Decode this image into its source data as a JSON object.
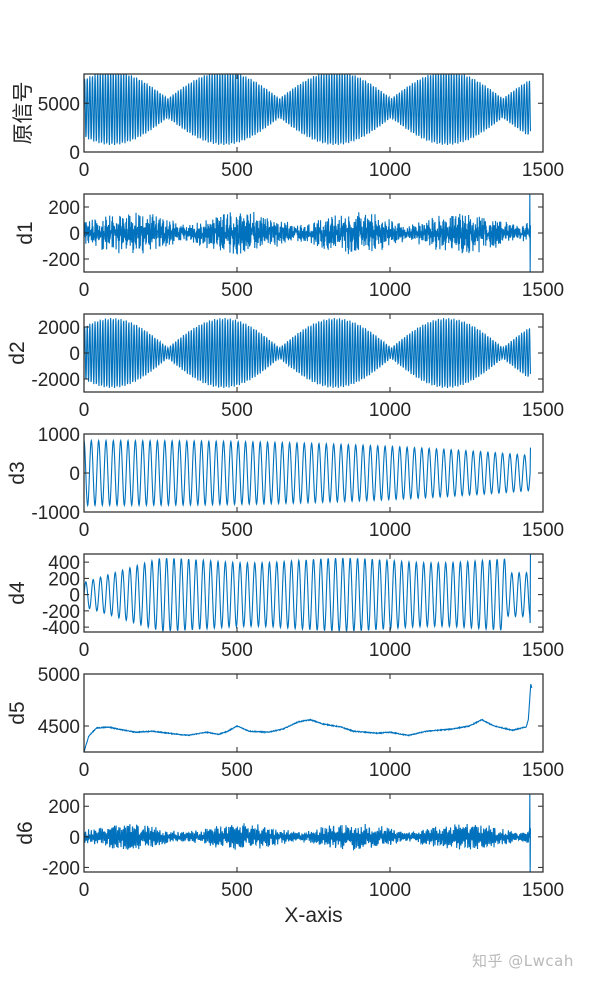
{
  "figure": {
    "xlabel": "X-axis",
    "watermark": "知乎 @Lwcah",
    "line_color": "#0072BD",
    "axes_color": "#262626"
  },
  "chart_data": [
    {
      "type": "line",
      "title": "",
      "xlabel": "",
      "ylabel": "原信号",
      "xlim": [
        0,
        1500
      ],
      "ylim": [
        0,
        8000
      ],
      "xticks": [
        0,
        500,
        1000,
        1500
      ],
      "yticks": [
        0,
        5000
      ],
      "ytick_labels": [
        "0",
        "5000"
      ],
      "signal": {
        "kind": "beat",
        "n": 1460,
        "offset": 4500,
        "amp_base": 1000,
        "amp_mod": 2800,
        "period": 8.5,
        "mod_period": 365,
        "mod_phase": -0.25
      },
      "description": "Original signal oscillating ~1000–7800 around 4500 with beat envelope; minima of envelope near x≈140, 500, 870, 1230"
    },
    {
      "type": "line",
      "ylabel": "d1",
      "xlim": [
        0,
        1500
      ],
      "ylim": [
        -300,
        300
      ],
      "xticks": [
        0,
        500,
        1000,
        1500
      ],
      "yticks": [
        -200,
        0,
        200
      ],
      "ytick_labels": [
        "-200",
        "0",
        "200"
      ],
      "signal": {
        "kind": "noise",
        "n": 1460,
        "offset": 0,
        "amp_base": 60,
        "amp_mod": 110,
        "period": 2.2,
        "mod_period": 365,
        "mod_phase": 0.0,
        "end_spike": 300
      },
      "description": "High-frequency noise, amplitude ±50 to ±220, spike at end"
    },
    {
      "type": "line",
      "ylabel": "d2",
      "xlim": [
        0,
        1500
      ],
      "ylim": [
        -3000,
        3000
      ],
      "xticks": [
        0,
        500,
        1000,
        1500
      ],
      "yticks": [
        -2000,
        0,
        2000
      ],
      "ytick_labels": [
        "-2000",
        "0",
        "2000"
      ],
      "signal": {
        "kind": "beat",
        "n": 1460,
        "offset": 0,
        "amp_base": 400,
        "amp_mod": 2300,
        "period": 8.5,
        "mod_period": 365,
        "mod_phase": -0.25
      },
      "description": "Amplitude-modulated oscillation ±2700 with beat nodes near x≈175, 540, 920, 1240"
    },
    {
      "type": "line",
      "ylabel": "d3",
      "xlim": [
        0,
        1500
      ],
      "ylim": [
        -1000,
        1000
      ],
      "xticks": [
        0,
        500,
        1000,
        1500
      ],
      "yticks": [
        -1000,
        0,
        1000
      ],
      "ytick_labels": [
        "-1000",
        "0",
        "1000"
      ],
      "signal": {
        "kind": "decay",
        "n": 1460,
        "offset": 0,
        "amp_start": 830,
        "amp_end": 450,
        "period": 24
      },
      "description": "Near-sinusoid amplitude ~830 decaying to ~450 near x=1460"
    },
    {
      "type": "line",
      "ylabel": "d4",
      "xlim": [
        0,
        1500
      ],
      "ylim": [
        -460,
        500
      ],
      "xticks": [
        0,
        500,
        1000,
        1500
      ],
      "yticks": [
        -400,
        -200,
        0,
        200,
        400
      ],
      "ytick_labels": [
        "-400",
        "-200",
        "0",
        "200",
        "400"
      ],
      "signal": {
        "kind": "grow",
        "n": 1460,
        "offset": 0,
        "amp_start": 150,
        "amp_peak": 450,
        "period": 24,
        "end_spike": 500
      },
      "description": "Sinusoid amplitude growing 150→450 by x≈250 then ~380–450, spike at end"
    },
    {
      "type": "line",
      "ylabel": "d5",
      "xlim": [
        0,
        1500
      ],
      "ylim": [
        4250,
        5000
      ],
      "xticks": [
        0,
        500,
        1000,
        1500
      ],
      "yticks": [
        4500,
        5000
      ],
      "ytick_labels": [
        "4500",
        "5000"
      ],
      "signal": {
        "kind": "trend",
        "n": 1460,
        "points": [
          [
            0,
            4250
          ],
          [
            15,
            4400
          ],
          [
            40,
            4480
          ],
          [
            80,
            4490
          ],
          [
            130,
            4460
          ],
          [
            170,
            4440
          ],
          [
            220,
            4450
          ],
          [
            280,
            4430
          ],
          [
            340,
            4410
          ],
          [
            400,
            4440
          ],
          [
            440,
            4420
          ],
          [
            470,
            4450
          ],
          [
            500,
            4500
          ],
          [
            540,
            4450
          ],
          [
            600,
            4440
          ],
          [
            650,
            4470
          ],
          [
            700,
            4540
          ],
          [
            740,
            4560
          ],
          [
            780,
            4520
          ],
          [
            840,
            4490
          ],
          [
            880,
            4450
          ],
          [
            960,
            4430
          ],
          [
            1000,
            4440
          ],
          [
            1060,
            4410
          ],
          [
            1120,
            4450
          ],
          [
            1200,
            4470
          ],
          [
            1260,
            4500
          ],
          [
            1300,
            4560
          ],
          [
            1340,
            4500
          ],
          [
            1400,
            4460
          ],
          [
            1430,
            4480
          ],
          [
            1445,
            4490
          ],
          [
            1452,
            4560
          ],
          [
            1460,
            4900
          ],
          [
            1465,
            4860
          ]
        ]
      },
      "description": "Slowly varying baseline ~4400–4560 with sharp rise to ~4900 at the end"
    },
    {
      "type": "line",
      "ylabel": "d6",
      "xlim": [
        0,
        1500
      ],
      "ylim": [
        -230,
        280
      ],
      "xticks": [
        0,
        500,
        1000,
        1500
      ],
      "yticks": [
        -200,
        0,
        200
      ],
      "ytick_labels": [
        "-200",
        "0",
        "200"
      ],
      "signal": {
        "kind": "noise",
        "n": 1460,
        "offset": 0,
        "amp_base": 30,
        "amp_mod": 60,
        "period": 4.5,
        "mod_period": 365,
        "mod_phase": 0.0,
        "end_spike": 280
      },
      "description": "Noise-like oscillation ±30 to ±100, sharp spike ±250 at end"
    }
  ]
}
